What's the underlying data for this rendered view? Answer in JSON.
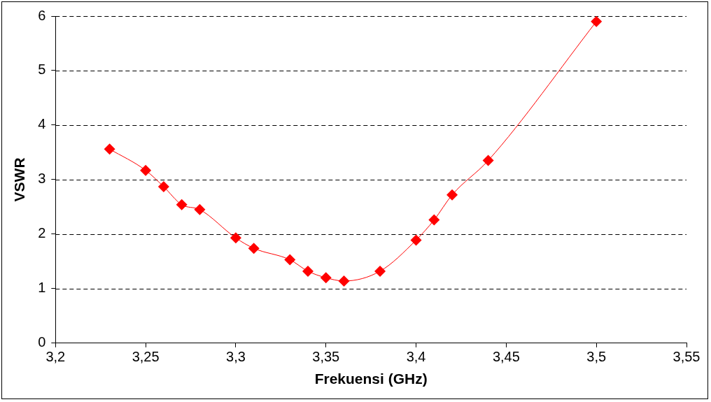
{
  "chart_data": {
    "type": "line",
    "xlabel": "Frekuensi (GHz)",
    "ylabel": "VSWR",
    "x": [
      3.23,
      3.25,
      3.26,
      3.27,
      3.28,
      3.3,
      3.31,
      3.33,
      3.34,
      3.35,
      3.36,
      3.38,
      3.4,
      3.41,
      3.42,
      3.44,
      3.5
    ],
    "series": [
      {
        "color": "#ff0000",
        "values": [
          3.56,
          3.17,
          2.87,
          2.54,
          2.45,
          1.93,
          1.74,
          1.53,
          1.32,
          1.2,
          1.14,
          1.32,
          1.89,
          2.26,
          2.72,
          3.35,
          5.9
        ]
      }
    ],
    "xlim": [
      3.2,
      3.55
    ],
    "xticks": [
      {
        "value": 3.2,
        "label": "3,2"
      },
      {
        "value": 3.25,
        "label": "3,25"
      },
      {
        "value": 3.3,
        "label": "3,3"
      },
      {
        "value": 3.35,
        "label": "3,35"
      },
      {
        "value": 3.4,
        "label": "3,4"
      },
      {
        "value": 3.45,
        "label": "3,45"
      },
      {
        "value": 3.5,
        "label": "3,5"
      },
      {
        "value": 3.55,
        "label": "3,55"
      }
    ],
    "ylim": [
      0,
      6
    ],
    "yticks": [
      0,
      1,
      2,
      3,
      4,
      5,
      6
    ],
    "grid": "y",
    "legend": false,
    "marker": "diamond",
    "line_style": "solid"
  }
}
